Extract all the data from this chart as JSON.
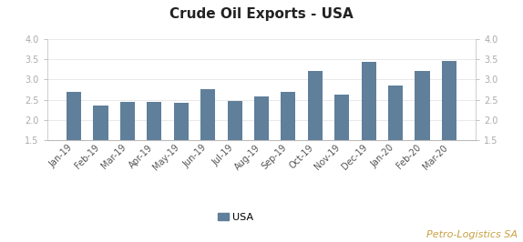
{
  "title": "Crude Oil Exports - USA",
  "categories": [
    "Jan-19",
    "Feb-19",
    "Mar-19",
    "Apr-19",
    "May-19",
    "Jun-19",
    "Jul-19",
    "Aug-19",
    "Sep-19",
    "Oct-19",
    "Nov-19",
    "Dec-19",
    "Jan-20",
    "Feb-20",
    "Mar-20"
  ],
  "values": [
    2.7,
    2.35,
    2.45,
    2.45,
    2.42,
    2.75,
    2.47,
    2.57,
    2.7,
    3.2,
    2.62,
    3.42,
    2.85,
    3.2,
    3.45
  ],
  "bar_color": "#5f7f9a",
  "ylim": [
    1.5,
    4.0
  ],
  "yticks": [
    1.5,
    2.0,
    2.5,
    3.0,
    3.5,
    4.0
  ],
  "legend_label": "USA",
  "watermark": "Petro-Logistics SA",
  "title_fontsize": 11,
  "tick_fontsize": 7,
  "legend_fontsize": 8,
  "watermark_fontsize": 8,
  "watermark_color": "#c8a040",
  "background_color": "#ffffff"
}
